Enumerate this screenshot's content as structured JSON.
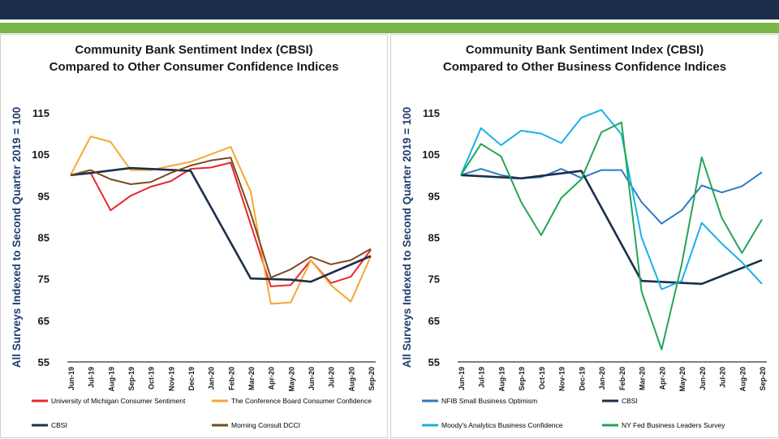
{
  "chart_data": [
    {
      "type": "line",
      "title_line1": "Community Bank Sentiment Index (CBSI)",
      "title_line2": "Compared to Other Consumer Confidence Indices",
      "xlabel": "",
      "ylabel": "All Surveys Indexed to Second Quarter 2019 = 100",
      "ylim": [
        55,
        115
      ],
      "yticks": [
        "115",
        "105",
        "95",
        "85",
        "75",
        "65",
        "55"
      ],
      "categories": [
        "Jun-19",
        "Jul-19",
        "Aug-19",
        "Sep-19",
        "Oct-19",
        "Nov-19",
        "Dec-19",
        "Jan-20",
        "Feb-20",
        "Mar-20",
        "Apr-20",
        "May-20",
        "Jun-20",
        "Jul-20",
        "Aug-20",
        "Sep-20"
      ],
      "series": [
        {
          "name": "University of Michigan Consumer Sentiment",
          "color": "#e8282b",
          "values": [
            100,
            100.5,
            91.5,
            95,
            97.2,
            98.5,
            101.5,
            101.8,
            103,
            null,
            73.2,
            73.5,
            79.5,
            74,
            75.5,
            82
          ]
        },
        {
          "name": "The Conference Board Consumer Confidence",
          "color": "#f4a833",
          "values": [
            100,
            109.3,
            108,
            101.2,
            101.2,
            102.2,
            103.2,
            105,
            106.8,
            96,
            69,
            69.3,
            79.5,
            73.5,
            69.5,
            80.5
          ]
        },
        {
          "name": "CBSI",
          "color": "#1b2f4a",
          "values": [
            100,
            100.5,
            null,
            101.7,
            null,
            null,
            101,
            null,
            null,
            75.1,
            null,
            74.8,
            74.3,
            null,
            null,
            80.5
          ]
        },
        {
          "name": "Morning Consult DCCI",
          "color": "#7a4a1e",
          "values": [
            100,
            101.2,
            99,
            97.8,
            98.3,
            100.5,
            102.3,
            103.5,
            104.2,
            90.8,
            75.3,
            77.3,
            80.3,
            78.5,
            79.5,
            82.2
          ]
        }
      ],
      "legend": "bottom"
    },
    {
      "type": "line",
      "title_line1": "Community Bank Sentiment Index (CBSI)",
      "title_line2": "Compared to Other Business Confidence Indices",
      "xlabel": "",
      "ylabel": "All Surveys Indexed to Second Quarter 2019 = 100",
      "ylim": [
        55,
        115
      ],
      "yticks": [
        "115",
        "105",
        "95",
        "85",
        "75",
        "65",
        "55"
      ],
      "categories": [
        "Jun-19",
        "Jul-19",
        "Aug-19",
        "Sep-19",
        "Oct-19",
        "Nov-19",
        "Dec-19",
        "Jan-20",
        "Feb-20",
        "Mar-20",
        "Apr-20",
        "May-20",
        "Jun-20",
        "Jul-20",
        "Aug-20",
        "Sep-20"
      ],
      "series": [
        {
          "name": "NFIB Small Business Optimism",
          "color": "#2a7bc0",
          "values": [
            100,
            101.5,
            100,
            99.2,
            99.5,
            101.5,
            99.3,
            101.2,
            101.2,
            93.5,
            88.3,
            91.5,
            97.5,
            95.8,
            97.3,
            100.7
          ]
        },
        {
          "name": "CBSI",
          "color": "#1b2f4a",
          "values": [
            100,
            null,
            null,
            99.2,
            null,
            null,
            101,
            null,
            null,
            74.5,
            null,
            null,
            73.8,
            null,
            null,
            79.5
          ]
        },
        {
          "name": "Moody's Analytics Business Confidence",
          "color": "#1ab0ea",
          "values": [
            100,
            111.3,
            107.2,
            110.7,
            110,
            107.7,
            113.8,
            115.7,
            109.8,
            85,
            72.5,
            74.5,
            88.5,
            83.5,
            79,
            73.8
          ]
        },
        {
          "name": "NY Fed Business Leaders Survey",
          "color": "#22a654",
          "values": [
            100,
            107.5,
            104.5,
            93.5,
            85.5,
            94.5,
            99,
            110.3,
            112.7,
            72,
            58,
            78.5,
            104.3,
            89.7,
            81.2,
            89.3
          ]
        }
      ],
      "legend": "bottom"
    }
  ]
}
